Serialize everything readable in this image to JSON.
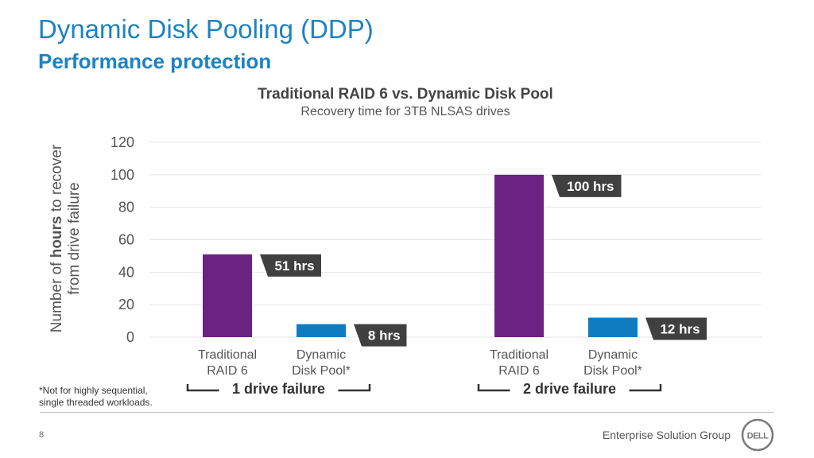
{
  "slide": {
    "title": "Dynamic Disk Pooling (DDP)",
    "subtitle": "Performance protection",
    "footnote_line1": "*Not for highly sequential,",
    "footnote_line2": "single threaded workloads.",
    "page_number": "8",
    "org_name": "Enterprise Solution Group",
    "logo_text": "DELL"
  },
  "chart_data": {
    "type": "bar",
    "title": "Traditional RAID 6 vs. Dynamic Disk Pool",
    "subtitle": "Recovery time for 3TB NLSAS drives",
    "ylabel_pre": "Number of ",
    "ylabel_bold": "hours",
    "ylabel_post": " to recover",
    "ylabel_line2": "from drive failure",
    "ylim": [
      0,
      120
    ],
    "yticks": [
      0,
      20,
      40,
      60,
      80,
      100,
      120
    ],
    "grid": true,
    "groups": [
      {
        "label": "1 drive failure",
        "bars": [
          {
            "category": [
              "Traditional",
              "RAID 6"
            ],
            "value": 51,
            "color": "#6a2383",
            "data_label": "51 hrs"
          },
          {
            "category": [
              "Dynamic",
              "Disk Pool*"
            ],
            "value": 8,
            "color": "#0f7cc1",
            "data_label": "8 hrs"
          }
        ]
      },
      {
        "label": "2 drive failure",
        "bars": [
          {
            "category": [
              "Traditional",
              "RAID 6"
            ],
            "value": 100,
            "color": "#6a2383",
            "data_label": "100 hrs"
          },
          {
            "category": [
              "Dynamic",
              "Disk Pool*"
            ],
            "value": 12,
            "color": "#0f7cc1",
            "data_label": "12 hrs"
          }
        ]
      }
    ],
    "label_box_color": "#404040"
  }
}
